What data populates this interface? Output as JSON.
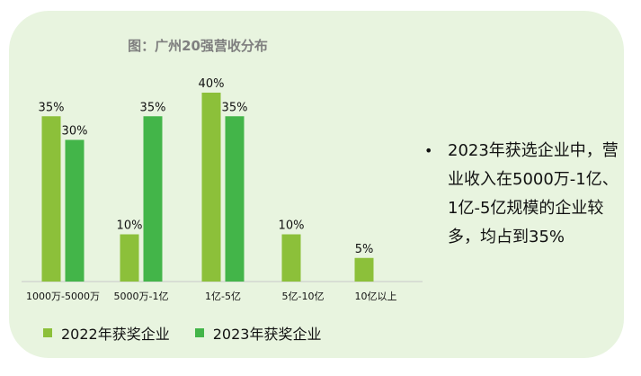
{
  "chart_data": {
    "type": "bar",
    "title": "图：广州20强营收分布",
    "categories": [
      "1000万-5000万",
      "5000万-1亿",
      "1亿-5亿",
      "5亿-10亿",
      "10亿以上"
    ],
    "series": [
      {
        "name": "2022年获奖企业",
        "values": [
          35,
          10,
          40,
          10,
          5
        ],
        "color": "#8cc03a"
      },
      {
        "name": "2023年获奖企业",
        "values": [
          30,
          35,
          35,
          null,
          null
        ],
        "color": "#43b549"
      }
    ],
    "value_suffix": "%",
    "ylim": [
      0,
      40
    ],
    "grid": false,
    "legend": "bottom"
  },
  "note": {
    "bullet": "•",
    "text": "2023年获选企业中，营业收入在5000万-1亿、1亿-5亿规模的企业较多，均占到35%"
  },
  "colors": {
    "panel": "#e8f4df",
    "series_2022": "#8cc03a",
    "series_2023": "#43b549"
  }
}
